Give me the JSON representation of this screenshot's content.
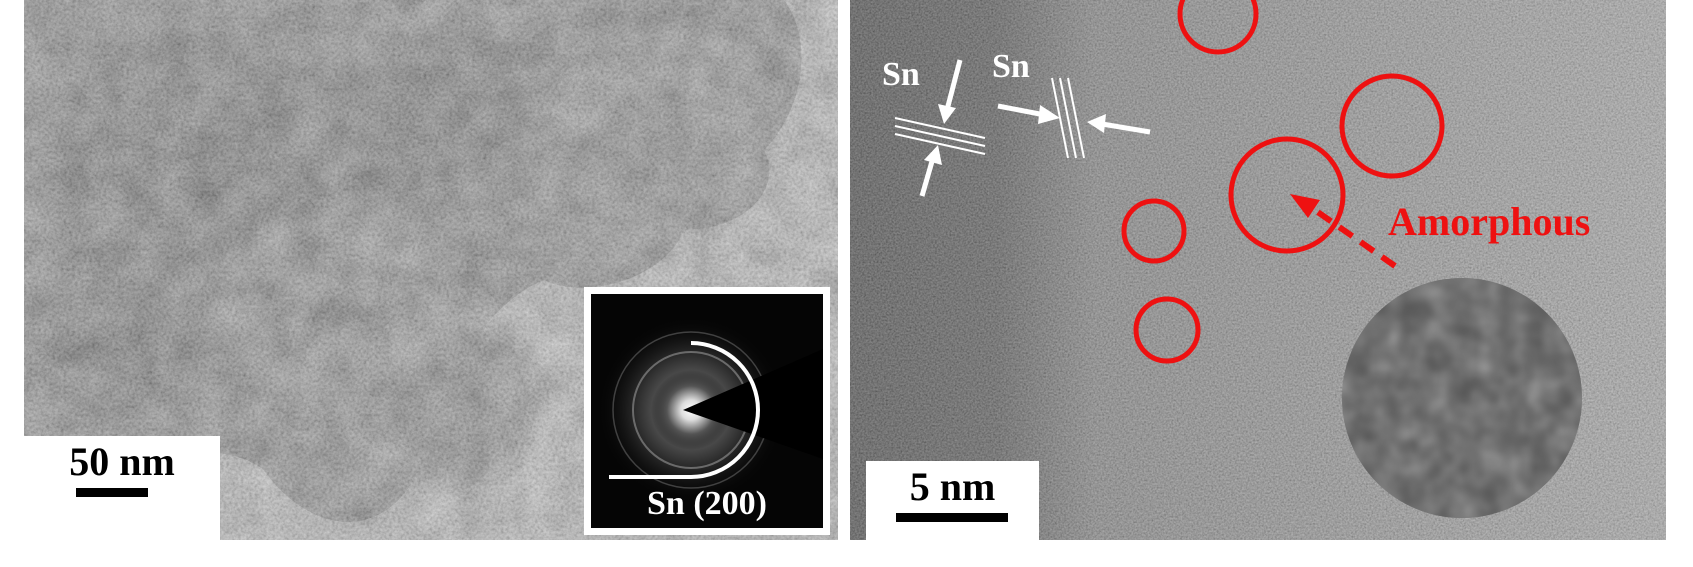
{
  "left_panel": {
    "scale_bar": {
      "label": "50 nm"
    },
    "inset": {
      "label": "Sn (200)"
    }
  },
  "right_panel": {
    "scale_bar": {
      "label": "5 nm"
    },
    "lattice_labels": [
      "Sn",
      "Sn"
    ],
    "annotation": {
      "label": "Amorphous"
    }
  },
  "colors": {
    "annotation": "#ee1111",
    "label_light": "#ffffff",
    "scale_bar_text": "#000000"
  }
}
